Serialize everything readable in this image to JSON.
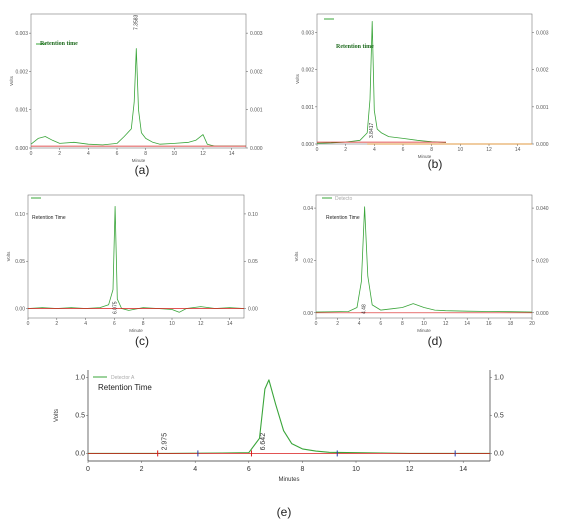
{
  "colors": {
    "trace": "#3aa53a",
    "baseline": "#d81c1c",
    "marker": "#2b3ea8",
    "orange": "#f0901e"
  },
  "chart_data": [
    {
      "id": "a",
      "type": "line",
      "caption": "(a)",
      "legend": "Retention time",
      "xlabel": "Minute",
      "ylabel": "Volts",
      "xlim": [
        0,
        15
      ],
      "ylim": [
        0,
        0.0035
      ],
      "xticks": [
        0,
        2,
        4,
        6,
        8,
        10,
        12,
        14
      ],
      "yticks": [
        {
          "v": 0.0,
          "t": "0.000"
        },
        {
          "v": 0.001,
          "t": "0.001"
        },
        {
          "v": 0.002,
          "t": "0.002"
        },
        {
          "v": 0.003,
          "t": "0.003"
        }
      ],
      "yticks_right": [
        {
          "v": 0.0,
          "t": "0.000"
        },
        {
          "v": 0.001,
          "t": "0.001"
        },
        {
          "v": 0.002,
          "t": "0.002"
        },
        {
          "v": 0.003,
          "t": "0.003"
        }
      ],
      "peak_label": "7.3583",
      "series": [
        {
          "role": "trace",
          "x": [
            0,
            0.5,
            1,
            1.5,
            2,
            3,
            4,
            5,
            6,
            6.5,
            7,
            7.2,
            7.35,
            7.5,
            7.7,
            8,
            8.5,
            9,
            10,
            11,
            11.5,
            12,
            12.3,
            12.8,
            14,
            15
          ],
          "y": [
            0.0001,
            0.00025,
            0.0003,
            0.0002,
            0.00012,
            0.00015,
            0.0001,
            8e-05,
            0.00012,
            0.0003,
            0.0005,
            0.0012,
            0.0026,
            0.001,
            0.0004,
            0.00025,
            0.00015,
            0.0001,
            0.00012,
            0.00015,
            0.0002,
            0.00035,
            0.0001,
            5e-05,
            5e-05,
            5e-05
          ]
        },
        {
          "role": "baseline",
          "x": [
            0,
            15
          ],
          "y": [
            5e-05,
            5e-05
          ]
        }
      ]
    },
    {
      "id": "b",
      "type": "line",
      "caption": "(b)",
      "legend": "Retention time",
      "xlabel": "Minute",
      "ylabel": "Volts",
      "xlim": [
        0,
        15
      ],
      "ylim": [
        0,
        0.0035
      ],
      "xticks": [
        0,
        2,
        4,
        6,
        8,
        10,
        12,
        14
      ],
      "yticks": [
        {
          "v": 0.0,
          "t": "0.000"
        },
        {
          "v": 0.001,
          "t": "0.001"
        },
        {
          "v": 0.002,
          "t": "0.002"
        },
        {
          "v": 0.003,
          "t": "0.003"
        }
      ],
      "yticks_right": [
        {
          "v": 0.0,
          "t": "0.000"
        },
        {
          "v": 0.001,
          "t": "0.001"
        },
        {
          "v": 0.002,
          "t": "0.002"
        },
        {
          "v": 0.003,
          "t": "0.003"
        }
      ],
      "peak_label": "3.8417",
      "series": [
        {
          "role": "trace",
          "x": [
            0,
            1,
            2,
            3,
            3.5,
            3.7,
            3.85,
            4.0,
            4.2,
            4.5,
            5,
            6,
            7,
            8,
            9
          ],
          "y": [
            2e-05,
            3e-05,
            5e-05,
            0.0001,
            0.0003,
            0.0012,
            0.0033,
            0.0009,
            0.0004,
            0.0003,
            0.0002,
            0.00015,
            0.0001,
            6e-05,
            4e-05
          ]
        },
        {
          "role": "baseline",
          "x": [
            0,
            9
          ],
          "y": [
            5e-05,
            5e-05
          ]
        },
        {
          "role": "orange",
          "x": [
            3.5,
            15
          ],
          "y": [
            0.0,
            0.0
          ]
        }
      ]
    },
    {
      "id": "c",
      "type": "line",
      "caption": "(c)",
      "legend": "Retention Time",
      "xlabel": "Minute",
      "ylabel": "Volts",
      "xlim": [
        0,
        15
      ],
      "ylim": [
        -0.01,
        0.12
      ],
      "xticks": [
        0,
        2,
        4,
        6,
        8,
        10,
        12,
        14
      ],
      "yticks": [
        {
          "v": 0.0,
          "t": "0.00"
        },
        {
          "v": 0.05,
          "t": "0.05"
        },
        {
          "v": 0.1,
          "t": "0.10"
        }
      ],
      "yticks_right": [
        {
          "v": 0.0,
          "t": "0.00"
        },
        {
          "v": 0.05,
          "t": "0.05"
        },
        {
          "v": 0.1,
          "t": "0.10"
        }
      ],
      "peak_label": "6.075",
      "series": [
        {
          "role": "trace",
          "x": [
            0,
            1,
            2,
            3,
            4,
            5,
            5.6,
            5.9,
            6.05,
            6.2,
            6.5,
            7,
            8,
            9,
            10,
            10.5,
            11,
            12,
            13,
            14,
            15
          ],
          "y": [
            0.0,
            0.001,
            0.0,
            0.001,
            0.0,
            0.001,
            0.004,
            0.02,
            0.108,
            0.01,
            0.0,
            -0.002,
            0.001,
            0.0,
            -0.001,
            -0.004,
            0.0,
            0.002,
            0.0,
            0.001,
            0.0
          ]
        },
        {
          "role": "baseline",
          "x": [
            0,
            15
          ],
          "y": [
            0.0,
            0.0
          ]
        }
      ]
    },
    {
      "id": "d",
      "type": "line",
      "caption": "(d)",
      "legend": "Retention Time",
      "legend_header": "Detecto",
      "xlabel": "Minute",
      "ylabel": "Volts",
      "xlim": [
        0,
        20
      ],
      "ylim": [
        -0.002,
        0.045
      ],
      "xticks": [
        0,
        2,
        4,
        6,
        8,
        10,
        12,
        14,
        16,
        18,
        20
      ],
      "yticks": [
        {
          "v": 0.0,
          "t": "0.00"
        },
        {
          "v": 0.02,
          "t": "0.02"
        },
        {
          "v": 0.04,
          "t": "0.04"
        }
      ],
      "yticks_right": [
        {
          "v": 0.0,
          "t": "0.000"
        },
        {
          "v": 0.02,
          "t": "0.020"
        },
        {
          "v": 0.04,
          "t": "0.040"
        }
      ],
      "peak_label": "4.48",
      "series": [
        {
          "role": "trace",
          "x": [
            0,
            3,
            3.8,
            4.2,
            4.5,
            4.8,
            5.2,
            6,
            7,
            8,
            9,
            10,
            11,
            12,
            14,
            16,
            18,
            20
          ],
          "y": [
            0.0003,
            0.0005,
            0.002,
            0.012,
            0.0405,
            0.014,
            0.003,
            0.001,
            0.0015,
            0.002,
            0.0035,
            0.002,
            0.001,
            0.0008,
            0.0006,
            0.0005,
            0.0004,
            0.0003
          ]
        },
        {
          "role": "baseline",
          "x": [
            0,
            20
          ],
          "y": [
            0.0,
            0.0
          ]
        }
      ]
    },
    {
      "id": "e",
      "type": "line",
      "caption": "(e)",
      "legend": "Retention Time",
      "legend_header": "Detector A",
      "xlabel": "Minutes",
      "ylabel": "Volts",
      "xlim": [
        0,
        15
      ],
      "ylim": [
        -0.1,
        1.1
      ],
      "xticks": [
        0,
        2,
        4,
        6,
        8,
        10,
        12,
        14
      ],
      "yticks": [
        {
          "v": 0.0,
          "t": "0.0"
        },
        {
          "v": 0.5,
          "t": "0.5"
        },
        {
          "v": 1.0,
          "t": "1.0"
        }
      ],
      "yticks_right": [
        {
          "v": 0.0,
          "t": "0.0"
        },
        {
          "v": 0.5,
          "t": "0.5"
        },
        {
          "v": 1.0,
          "t": "1.0"
        }
      ],
      "annotations": [
        {
          "x": 2.975,
          "text": "2.975"
        },
        {
          "x": 6.642,
          "text": "6.642"
        }
      ],
      "series": [
        {
          "role": "trace",
          "x": [
            0,
            3,
            5,
            6,
            6.4,
            6.6,
            6.75,
            7.0,
            7.3,
            7.6,
            8,
            8.5,
            9,
            10,
            11,
            12,
            13,
            14,
            15
          ],
          "y": [
            0.0,
            0.0,
            0.005,
            0.01,
            0.2,
            0.85,
            0.97,
            0.65,
            0.3,
            0.13,
            0.06,
            0.03,
            0.015,
            0.01,
            0.005,
            0.0,
            0.0,
            0.0,
            0.0
          ]
        },
        {
          "role": "baseline",
          "x": [
            0,
            15
          ],
          "y": [
            0.0,
            0.0
          ]
        }
      ]
    }
  ]
}
